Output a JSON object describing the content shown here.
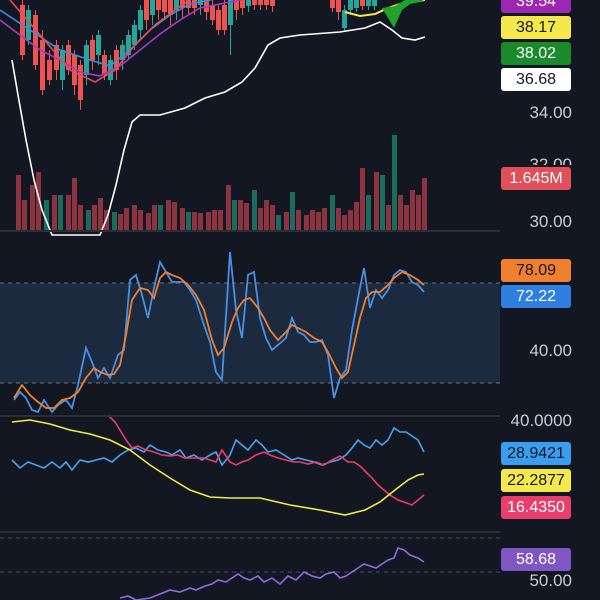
{
  "colors": {
    "background": "#131722",
    "up_candle": "#26a69a",
    "down_candle": "#ef5350",
    "ma_white": "#ffffff",
    "ma_yellow": "#f5e94a",
    "ma_green": "#1fa32c",
    "ma_purple": "#a53cc8",
    "stoch_k": "#4a90e2",
    "stoch_d": "#f08030",
    "dmi_plus": "#4aa3f0",
    "dmi_minus": "#e83e6c",
    "adx": "#f5e94a",
    "rsi": "#8e6cde"
  },
  "price_panel": {
    "ticks": [
      "34.00",
      "30.00"
    ],
    "partial_tick": "32.00",
    "badges": [
      {
        "text": "39.54",
        "bg": "#9c27b0",
        "fg": "#ffffff"
      },
      {
        "text": "38.17",
        "bg": "#f5e94a",
        "fg": "#131722"
      },
      {
        "text": "38.02",
        "bg": "#1b8a2a",
        "fg": "#ffffff"
      },
      {
        "text": "36.68",
        "bg": "#ffffff",
        "fg": "#131722"
      },
      {
        "text": "1.645M",
        "bg": "#e0505a",
        "fg": "#ffffff"
      }
    ]
  },
  "stoch_panel": {
    "tick": "40.00",
    "badges": [
      {
        "text": "78.09",
        "bg": "#f08030",
        "fg": "#131722"
      },
      {
        "text": "72.22",
        "bg": "#2f7fe0",
        "fg": "#ffffff"
      }
    ]
  },
  "dmi_panel": {
    "tick": "40.0000",
    "badges": [
      {
        "text": "28.9421",
        "bg": "#3a9ef0",
        "fg": "#131722"
      },
      {
        "text": "22.2877",
        "bg": "#f5e94a",
        "fg": "#131722"
      },
      {
        "text": "16.4350",
        "bg": "#e83e6c",
        "fg": "#ffffff"
      }
    ]
  },
  "rsi_panel": {
    "tick": "50.00",
    "badges": [
      {
        "text": "58.68",
        "bg": "#7e57c2",
        "fg": "#ffffff"
      }
    ]
  }
}
